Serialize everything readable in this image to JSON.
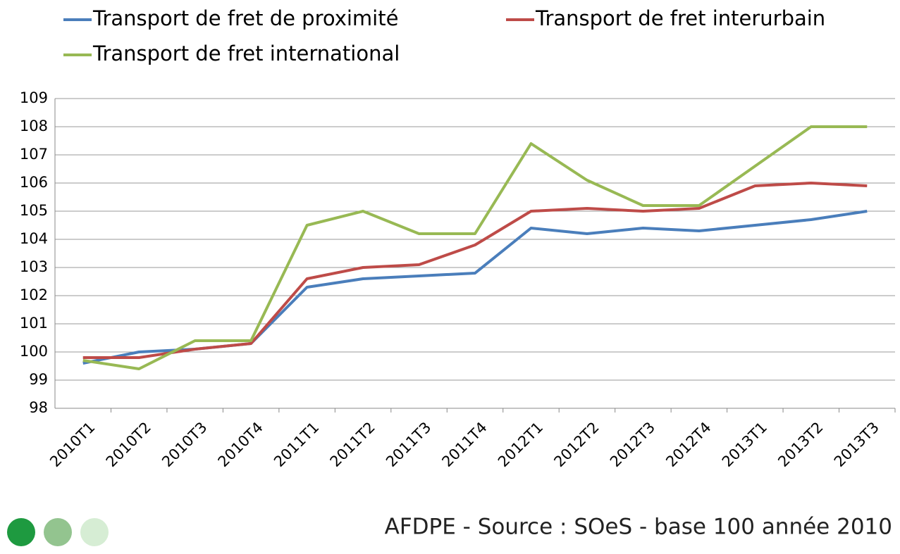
{
  "chart_data": {
    "type": "line",
    "categories": [
      "2010T1",
      "2010T2",
      "2010T3",
      "2010T4",
      "2011T1",
      "2011T2",
      "2011T3",
      "2011T4",
      "2012T1",
      "2012T2",
      "2012T3",
      "2012T4",
      "2013T1",
      "2013T2",
      "2013T3"
    ],
    "series": [
      {
        "name": "Transport de fret de proximité",
        "color": "#4a7ebb",
        "values": [
          99.6,
          100.0,
          100.1,
          100.3,
          102.3,
          102.6,
          102.7,
          102.8,
          104.4,
          104.2,
          104.4,
          104.3,
          104.5,
          104.7,
          105.0
        ]
      },
      {
        "name": "Transport de fret interurbain",
        "color": "#be4b48",
        "values": [
          99.8,
          99.8,
          100.1,
          100.3,
          102.6,
          103.0,
          103.1,
          103.8,
          105.0,
          105.1,
          105.0,
          105.1,
          105.9,
          106.0,
          105.9
        ]
      },
      {
        "name": "Transport de fret international",
        "color": "#98b954",
        "values": [
          99.7,
          99.4,
          100.4,
          100.4,
          104.5,
          105.0,
          104.2,
          104.2,
          107.4,
          106.1,
          105.2,
          105.2,
          106.6,
          108.0,
          108.0
        ]
      }
    ],
    "ylim": [
      98,
      109
    ],
    "yticks": [
      98,
      99,
      100,
      101,
      102,
      103,
      104,
      105,
      106,
      107,
      108,
      109
    ],
    "grid": true,
    "legend": "top",
    "source": "AFDPE - Source : SOeS - base 100 année 2010"
  }
}
